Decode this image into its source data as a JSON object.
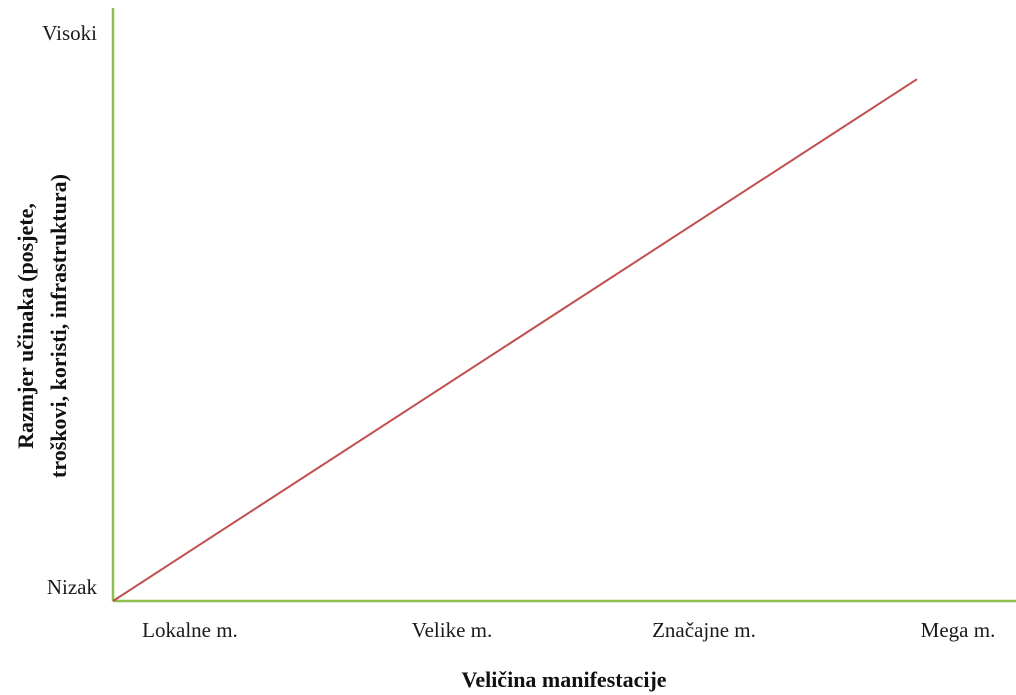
{
  "chart_data": {
    "type": "line",
    "title": "",
    "xlabel": "Veličina manifestacije",
    "ylabel_lines": [
      "Razmjer učinaka (posjete,",
      "troškovi, koristi, infrastruktura)"
    ],
    "categories": [
      "Lokalne m.",
      "Velike m.",
      "Značajne m.",
      "Mega m."
    ],
    "y_tick_labels": [
      "Nizak",
      "Visoki"
    ],
    "ylim": [
      0,
      1
    ],
    "series": [
      {
        "color": "#c0504d",
        "x": [
          0,
          3
        ],
        "y": [
          0,
          0.88
        ]
      }
    ],
    "grid": false,
    "legend": "none",
    "colors": {
      "axis": "#8cbf4e",
      "line": "#c0504d",
      "text": "#1a1a1a"
    }
  }
}
